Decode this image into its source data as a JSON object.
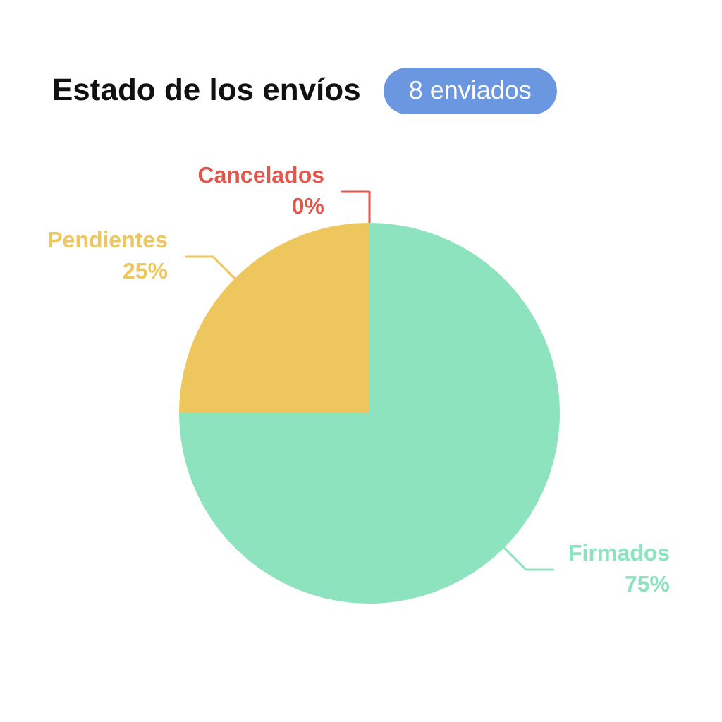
{
  "chart_data": {
    "type": "pie",
    "title": "Estado de los envíos",
    "subtitle": "8 enviados",
    "categories": [
      "Firmados",
      "Pendientes",
      "Cancelados"
    ],
    "values": [
      75,
      25,
      0
    ],
    "colors": [
      "#8ee3bf",
      "#edc65d",
      "#e0584d"
    ],
    "value_labels": [
      "75%",
      "25%",
      "0%"
    ]
  }
}
